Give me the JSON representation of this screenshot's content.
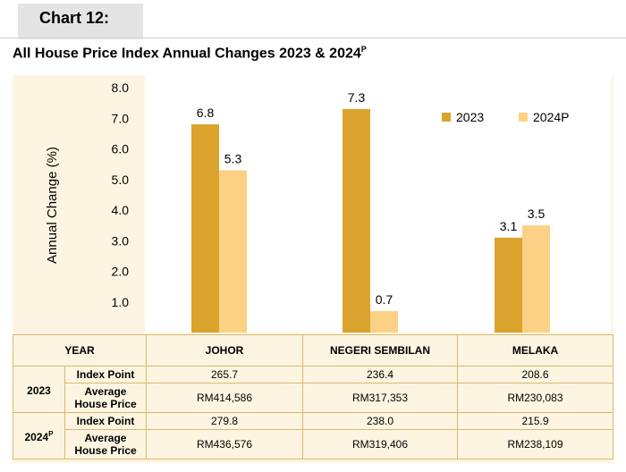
{
  "header": {
    "chart_label": "Chart 12:"
  },
  "title": {
    "text": "All House Price Index Annual Changes 2023 & 2024",
    "sup": "P"
  },
  "chart_data": {
    "type": "bar",
    "title": "All House Price Index Annual Changes 2023 & 2024P",
    "ylabel": "Annual Change (%)",
    "xlabel": "",
    "ylim": [
      0,
      8
    ],
    "yticks": [
      "1.0",
      "2.0",
      "3.0",
      "4.0",
      "5.0",
      "6.0",
      "7.0",
      "8.0"
    ],
    "categories": [
      "JOHOR",
      "NEGERI SEMBILAN",
      "MELAKA"
    ],
    "series": [
      {
        "name": "2023",
        "color": "#daa42e",
        "values": [
          6.8,
          7.3,
          3.1
        ],
        "labels": [
          "6.8",
          "7.3",
          "3.1"
        ]
      },
      {
        "name": "2024P",
        "color": "#fdd185",
        "values": [
          5.3,
          0.7,
          3.5
        ],
        "labels": [
          "5.3",
          "0.7",
          "3.5"
        ]
      }
    ],
    "legend": "top-right"
  },
  "table": {
    "year_header": "YEAR",
    "columns": [
      "JOHOR",
      "NEGERI SEMBILAN",
      "MELAKA"
    ],
    "index_point_label": "Index Point",
    "avg_price_label_1": "Average",
    "avg_price_label_2": "House Price",
    "rows": [
      {
        "year": "2023",
        "year_sup": "",
        "index": [
          "265.7",
          "236.4",
          "208.6"
        ],
        "price": [
          "RM414,586",
          "RM317,353",
          "RM230,083"
        ]
      },
      {
        "year": "2024",
        "year_sup": "P",
        "index": [
          "279.8",
          "238.0",
          "215.9"
        ],
        "price": [
          "RM436,576",
          "RM319,406",
          "RM238,109"
        ]
      }
    ]
  }
}
